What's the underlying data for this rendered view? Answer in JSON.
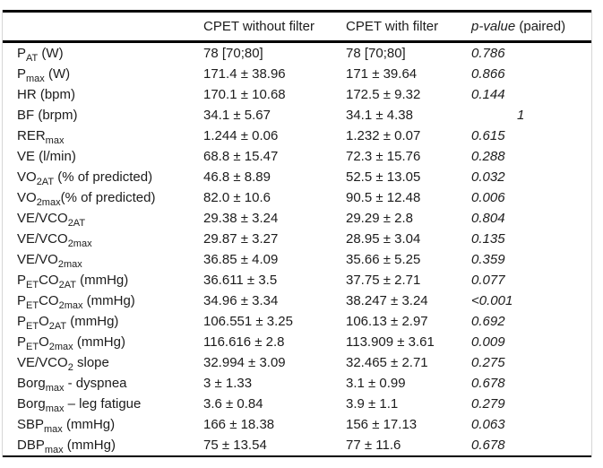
{
  "table": {
    "header": {
      "col_label": "",
      "col_without": "CPET without filter",
      "col_with": "CPET with filter",
      "col_p_italic": "p-value",
      "col_p_suffix": " (paired)"
    },
    "rows": [
      {
        "label": [
          {
            "t": "P"
          },
          {
            "t": "AT",
            "sub": true
          },
          {
            "t": " (W)"
          }
        ],
        "without": "78 [70;80]",
        "with": "78 [70;80]",
        "p": "0.786"
      },
      {
        "label": [
          {
            "t": "P"
          },
          {
            "t": "max",
            "sub": true
          },
          {
            "t": " (W)"
          }
        ],
        "without": "171.4 ± 38.96",
        "with": "171 ± 39.64",
        "p": "0.866"
      },
      {
        "label": [
          {
            "t": "HR (bpm)"
          }
        ],
        "without": "170.1 ± 10.68",
        "with": "172.5 ± 9.32",
        "p": "0.144"
      },
      {
        "label": [
          {
            "t": "BF (brpm)"
          }
        ],
        "without": "34.1 ± 5.67",
        "with": "34.1 ± 4.38",
        "p": "1",
        "p_indent": true
      },
      {
        "label": [
          {
            "t": "RER"
          },
          {
            "t": "max",
            "sub": true
          }
        ],
        "without": "1.244 ± 0.06",
        "with": "1.232 ± 0.07",
        "p": "0.615"
      },
      {
        "label": [
          {
            "t": "VE (l/min)"
          }
        ],
        "without": "68.8 ± 15.47",
        "with": "72.3 ± 15.76",
        "p": "0.288"
      },
      {
        "label": [
          {
            "t": "VO"
          },
          {
            "t": "2AT",
            "sub": true
          },
          {
            "t": " (% of predicted)"
          }
        ],
        "without": "46.8 ± 8.89",
        "with": "52.5 ± 13.05",
        "p": "0.032"
      },
      {
        "label": [
          {
            "t": "VO"
          },
          {
            "t": "2max",
            "sub": true
          },
          {
            "t": "(% of predicted)"
          }
        ],
        "without": "82.0 ± 10.6",
        "with": "90.5 ± 12.48",
        "p": "0.006"
      },
      {
        "label": [
          {
            "t": "VE/VCO"
          },
          {
            "t": "2AT",
            "sub": true
          }
        ],
        "without": "29.38 ± 3.24",
        "with": "29.29 ± 2.8",
        "p": "0.804"
      },
      {
        "label": [
          {
            "t": "VE/VCO"
          },
          {
            "t": "2max",
            "sub": true
          }
        ],
        "without": "29.87 ± 3.27",
        "with": "28.95 ± 3.04",
        "p": "0.135"
      },
      {
        "label": [
          {
            "t": "VE/VO"
          },
          {
            "t": "2max",
            "sub": true
          }
        ],
        "without": "36.85 ± 4.09",
        "with": "35.66 ± 5.25",
        "p": "0.359"
      },
      {
        "label": [
          {
            "t": "P"
          },
          {
            "t": "ET",
            "sub": true
          },
          {
            "t": "CO"
          },
          {
            "t": "2AT",
            "sub": true
          },
          {
            "t": " (mmHg)"
          }
        ],
        "without": "36.611 ± 3.5",
        "with": "37.75 ± 2.71",
        "p": "0.077"
      },
      {
        "label": [
          {
            "t": "P"
          },
          {
            "t": "ET",
            "sub": true
          },
          {
            "t": "CO"
          },
          {
            "t": "2max",
            "sub": true
          },
          {
            "t": " (mmHg)"
          }
        ],
        "without": "34.96 ± 3.34",
        "with": "38.247 ± 3.24",
        "p": "<0.001"
      },
      {
        "label": [
          {
            "t": "P"
          },
          {
            "t": "ET",
            "sub": true
          },
          {
            "t": "O"
          },
          {
            "t": "2AT",
            "sub": true
          },
          {
            "t": " (mmHg)"
          }
        ],
        "without": "106.551 ± 3.25",
        "with": "106.13 ± 2.97",
        "p": "0.692"
      },
      {
        "label": [
          {
            "t": "P"
          },
          {
            "t": "ET",
            "sub": true
          },
          {
            "t": "O"
          },
          {
            "t": "2max",
            "sub": true
          },
          {
            "t": " (mmHg)"
          }
        ],
        "without": "116.616 ± 2.8",
        "with": "113.909 ± 3.61",
        "p": "0.009"
      },
      {
        "label": [
          {
            "t": "VE/VCO"
          },
          {
            "t": "2",
            "sub": true
          },
          {
            "t": " slope"
          }
        ],
        "without": "32.994 ± 3.09",
        "with": "32.465 ± 2.71",
        "p": "0.275"
      },
      {
        "label": [
          {
            "t": "Borg"
          },
          {
            "t": "max",
            "sub": true
          },
          {
            "t": " - dyspnea"
          }
        ],
        "without": "3 ± 1.33",
        "with": "3.1 ± 0.99",
        "p": "0.678"
      },
      {
        "label": [
          {
            "t": "Borg"
          },
          {
            "t": "max",
            "sub": true
          },
          {
            "t": " – leg fatigue"
          }
        ],
        "without": "3.6 ± 0.84",
        "with": "3.9 ± 1.1",
        "p": "0.279"
      },
      {
        "label": [
          {
            "t": "SBP"
          },
          {
            "t": "max",
            "sub": true
          },
          {
            "t": " (mmHg)"
          }
        ],
        "without": "166 ± 18.38",
        "with": "156 ± 17.13",
        "p": "0.063"
      },
      {
        "label": [
          {
            "t": "DBP"
          },
          {
            "t": "max",
            "sub": true
          },
          {
            "t": " (mmHg)"
          }
        ],
        "without": "75 ± 13.54",
        "with": "77 ± 11.6",
        "p": "0.678"
      }
    ]
  }
}
